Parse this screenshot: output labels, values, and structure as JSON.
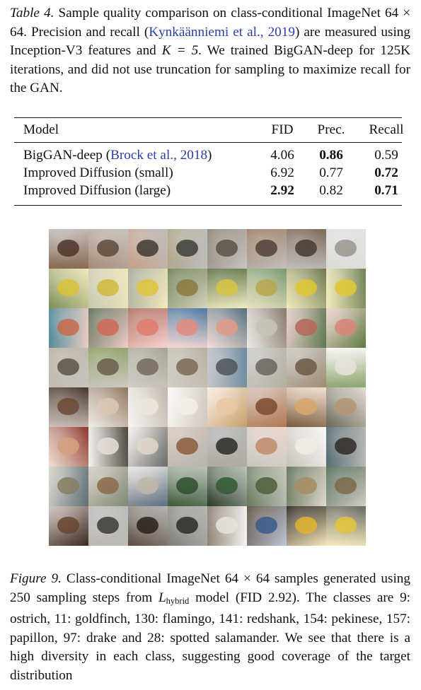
{
  "table_caption": {
    "label": "Table 4.",
    "text_before_citation": "Sample quality comparison on class-conditional ImageNet 64 × 64. Precision and recall (",
    "citation": "Kynkäänniemi et al., 2019",
    "text_middle": ") are measured using Inception-V3 features and ",
    "math_k": "K = 5",
    "text_after": ". We trained BigGAN-deep for 125K iterations, and did not use truncation for sampling to maximize recall for the GAN."
  },
  "table": {
    "headers": [
      "Model",
      "FID",
      "Prec.",
      "Recall"
    ],
    "rows": [
      {
        "model": "BigGAN-deep ",
        "citation": "Brock et al., 2018",
        "fid": "4.06",
        "prec": "0.86",
        "recall": "0.59"
      },
      {
        "model": "Improved Diffusion (small)",
        "citation": "",
        "fid": "6.92",
        "prec": "0.77",
        "recall": "0.72"
      },
      {
        "model": "Improved Diffusion (large)",
        "citation": "",
        "fid": "2.92",
        "prec": "0.82",
        "recall": "0.71"
      }
    ]
  },
  "sample_grid": {
    "rows": [
      {
        "class": "ostrich",
        "bg": [
          "#8a6a55",
          "#a48c78",
          "#c8a088",
          "#b0a68a",
          "#8f8373",
          "#9a7f66",
          "#7d6a5a",
          "#e2e2e0"
        ],
        "fg": [
          "#4b3428",
          "#5e4a3c",
          "#3d3a34",
          "#3e3d3a",
          "#5b5148",
          "#514239",
          "#463a33",
          "#9a948c"
        ]
      },
      {
        "class": "goldfinch",
        "bg": [
          "#7e8f58",
          "#c9c8b0",
          "#a4a89a",
          "#6b8055",
          "#5d7447",
          "#7a9a70",
          "#6f7a54",
          "#72845a"
        ],
        "fg": [
          "#d9c236",
          "#cfb93c",
          "#dfc43a",
          "#8a7a3f",
          "#d8c342",
          "#b9a64b",
          "#e0c52f",
          "#e2c832"
        ]
      },
      {
        "class": "flamingo",
        "bg": [
          "#4c8796",
          "#5a6e55",
          "#b06e62",
          "#4f7aa1",
          "#55717e",
          "#8a7b6b",
          "#5f7a52",
          "#5f7c44"
        ],
        "fg": [
          "#c86a4e",
          "#d06a56",
          "#e07c6d",
          "#e28b7d",
          "#e19a86",
          "#c8c3b8",
          "#b66658",
          "#d98477"
        ]
      },
      {
        "class": "redshank",
        "bg": [
          "#b9b0a0",
          "#8f9f64",
          "#a7a591",
          "#b7b2a0",
          "#6f8ba0",
          "#b4b0a4",
          "#9e8e76",
          "#8ca56e"
        ],
        "fg": [
          "#5a5248",
          "#6a5d4c",
          "#75695a",
          "#7a6a55",
          "#4f5458",
          "#6a655c",
          "#6a5b46",
          "#e7e3dc"
        ]
      },
      {
        "class": "pekinese",
        "bg": [
          "#4a3a2e",
          "#907862",
          "#c2b8ac",
          "#cfc7bd",
          "#c9a06e",
          "#b37a53",
          "#7a5a40",
          "#6a6a5a"
        ],
        "fg": [
          "#6b4a34",
          "#d9c9b3",
          "#ece6dc",
          "#f4efe6",
          "#e8c8a0",
          "#7b4a2d",
          "#d9a76d",
          "#b49574"
        ]
      },
      {
        "class": "papillon",
        "bg": [
          "#8e3a2c",
          "#4e4a40",
          "#6a6a64",
          "#b7b5ae",
          "#b0aca3",
          "#c9c6c0",
          "#c7c3bb",
          "#556c71"
        ],
        "fg": [
          "#d3a17e",
          "#e5dfd6",
          "#e2d6c9",
          "#8b5a3c",
          "#2c2a28",
          "#c08a6a",
          "#f1ece6",
          "#2f2a27"
        ]
      },
      {
        "class": "drake",
        "bg": [
          "#5e7078",
          "#7d8a76",
          "#5f6f7f",
          "#3f5a3a",
          "#2c3b2a",
          "#6b7a5e",
          "#5c6e52",
          "#4f6a55"
        ],
        "fg": [
          "#877c60",
          "#8a6a48",
          "#bfb7a8",
          "#2f4f2e",
          "#315932",
          "#4f5e3a",
          "#a68c62",
          "#7b6a4a"
        ]
      },
      {
        "class": "spotted salamander",
        "bg": [
          "#3b2b22",
          "#bdbab4",
          "#5c4d42",
          "#7d8078",
          "#8a7e70",
          "#5b4c3d",
          "#2c2622",
          "#6a6b66"
        ],
        "fg": [
          "#6a4530",
          "#3a3a36",
          "#2a201a",
          "#2c2a28",
          "#e6e2da",
          "#3a5a8a",
          "#e0b42e",
          "#e4c43a"
        ]
      }
    ]
  },
  "figure_caption": {
    "label": "Figure 9.",
    "text_before_math": "Class-conditional ImageNet 64 × 64 samples generated using 250 sampling steps from ",
    "math_l": "L",
    "math_sub": "hybrid",
    "text_after_math": " model (FID 2.92). The classes are 9: ostrich, 11: goldfinch, 130: flamingo, 141: redshank, 154: pekinese, 157: papillon, 97: drake and 28: spotted salamander. We see that there is a high diversity in each class, suggesting good coverage of the target distribution"
  }
}
